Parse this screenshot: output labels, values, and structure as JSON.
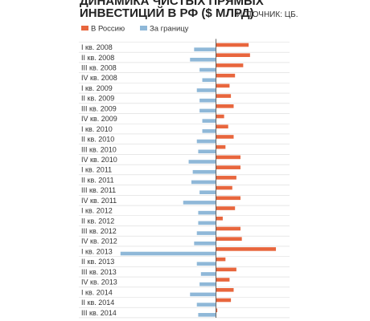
{
  "header": {
    "title_line1": "ДИНАМИКА ЧИСТЫХ ПРЯМЫХ",
    "title_line2": "ИНВЕСТИЦИЙ В РФ ($ МЛРД)",
    "source": "ИСТОЧНИК: ЦБ."
  },
  "colors": {
    "russia": "#E8663D",
    "abroad": "#8FB8D8",
    "grid": "#d9d9d9",
    "axis": "#555555"
  },
  "chart_data": {
    "type": "bar",
    "orientation": "horizontal",
    "title": "ДИНАМИКА ЧИСТЫХ ПРЯМЫХ ИНВЕСТИЦИЙ В РФ ($ МЛРД)",
    "legend_position": "top-left",
    "grid": true,
    "categories": [
      "I кв. 2008",
      "II кв. 2008",
      "III кв. 2008",
      "IV кв. 2008",
      "I кв. 2009",
      "II кв. 2009",
      "III кв. 2009",
      "IV кв. 2009",
      "I кв. 2010",
      "II кв. 2010",
      "III кв. 2010",
      "IV кв. 2010",
      "I кв. 2011",
      "II кв. 2011",
      "III кв. 2011",
      "IV кв. 2011",
      "I кв. 2012",
      "II кв. 2012",
      "III кв. 2012",
      "IV кв. 2012",
      "I кв. 2013",
      "II кв. 2013",
      "III кв. 2013",
      "IV кв. 2013",
      "I кв. 2014",
      "II кв. 2014",
      "III кв. 2014"
    ],
    "series": [
      {
        "name": "В Россию",
        "values": [
          12,
          12.5,
          10,
          7,
          5,
          5.5,
          6.5,
          3,
          4.5,
          6.5,
          3.5,
          9,
          9,
          7.5,
          6,
          9,
          7,
          2.5,
          9,
          9.5,
          22,
          3.5,
          7.5,
          5,
          6.5,
          5.5,
          0.5
        ]
      },
      {
        "name": "За границу",
        "values": [
          -8,
          -9.5,
          -6,
          -5,
          -7,
          -6,
          -6,
          -5,
          -5,
          -7,
          -6.5,
          -10,
          -8.5,
          -9,
          -6,
          -12,
          -6.5,
          -6.5,
          -7,
          -8,
          -35,
          -7,
          -5.5,
          -6,
          -9.5,
          -7,
          -6.5
        ]
      }
    ],
    "xlim": [
      -37,
      27
    ]
  }
}
